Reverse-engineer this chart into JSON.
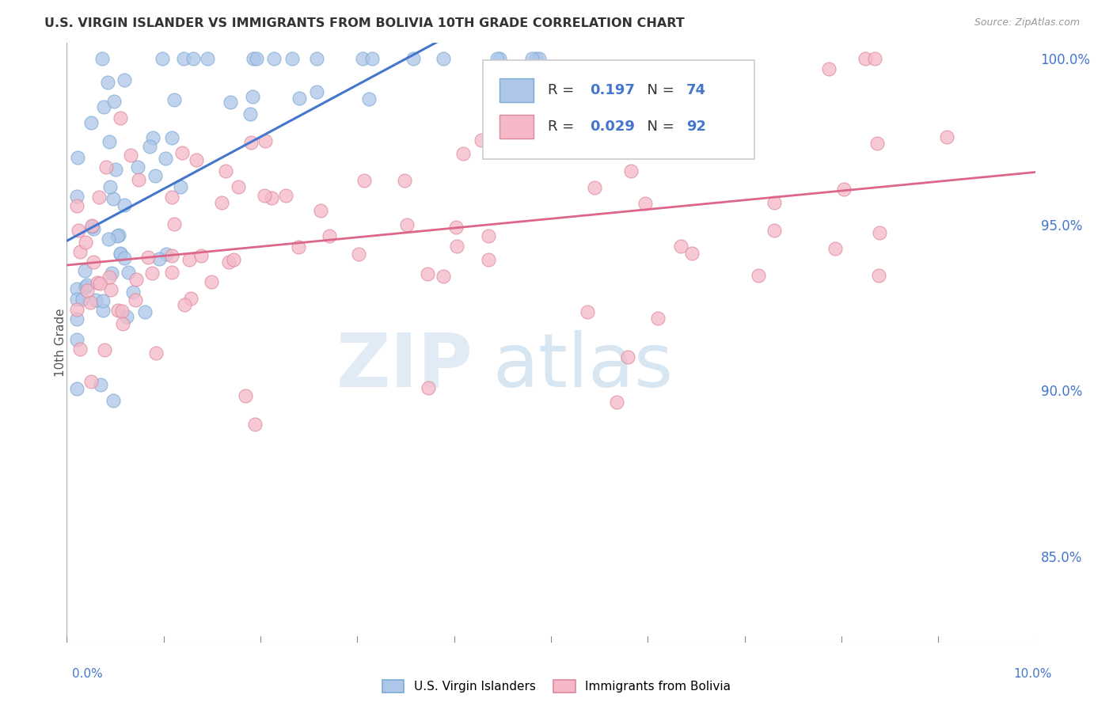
{
  "title": "U.S. VIRGIN ISLANDER VS IMMIGRANTS FROM BOLIVIA 10TH GRADE CORRELATION CHART",
  "source": "Source: ZipAtlas.com",
  "ylabel": "10th Grade",
  "R_blue": 0.197,
  "N_blue": 74,
  "R_pink": 0.029,
  "N_pink": 92,
  "legend_blue": "U.S. Virgin Islanders",
  "legend_pink": "Immigrants from Bolivia",
  "watermark_zip": "ZIP",
  "watermark_atlas": "atlas",
  "blue_color": "#aec6e8",
  "pink_color": "#f5b8c8",
  "blue_line_color": "#4477cc",
  "pink_line_color": "#dd6688",
  "blue_edge": "#7aaad4",
  "pink_edge": "#dd8899",
  "xmin": 0.0,
  "xmax": 0.1,
  "ymin": 0.824,
  "ymax": 1.005,
  "yticks": [
    0.85,
    0.9,
    0.95,
    1.0
  ],
  "ytick_labels": [
    "85.0%",
    "90.0%",
    "95.0%",
    "100.0%"
  ],
  "title_color": "#333333",
  "source_color": "#999999",
  "axis_color": "#4477cc",
  "grid_color": "#dddddd"
}
